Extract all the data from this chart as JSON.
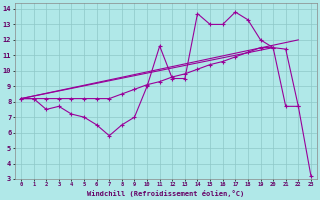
{
  "xlabel": "Windchill (Refroidissement éolien,°C)",
  "bg_color": "#b0e8e8",
  "grid_color": "#8ec8c8",
  "line_color": "#990099",
  "xlim": [
    -0.5,
    23.5
  ],
  "ylim": [
    3,
    14.4
  ],
  "xticks": [
    0,
    1,
    2,
    3,
    4,
    5,
    6,
    7,
    8,
    9,
    10,
    11,
    12,
    13,
    14,
    15,
    16,
    17,
    18,
    19,
    20,
    21,
    22,
    23
  ],
  "yticks": [
    3,
    4,
    5,
    6,
    7,
    8,
    9,
    10,
    11,
    12,
    13,
    14
  ],
  "line1_x": [
    0,
    1,
    2,
    3,
    4,
    5,
    6,
    7,
    8,
    9,
    10,
    11,
    12,
    13,
    14,
    15,
    16,
    17,
    18,
    19,
    20,
    21,
    22
  ],
  "line1_y": [
    8.2,
    8.2,
    7.5,
    7.7,
    7.2,
    7.0,
    6.5,
    5.8,
    6.5,
    7.0,
    9.0,
    11.6,
    9.5,
    9.5,
    13.7,
    13.0,
    13.0,
    13.8,
    13.3,
    12.0,
    11.5,
    7.7,
    7.7
  ],
  "line2_x": [
    0,
    1,
    2,
    3,
    4,
    5,
    6,
    7,
    8,
    9,
    10,
    11,
    12,
    13,
    14,
    15,
    16,
    17,
    18,
    19,
    20,
    21,
    22,
    23
  ],
  "line2_y": [
    8.2,
    8.2,
    8.2,
    8.2,
    8.2,
    8.2,
    8.2,
    8.2,
    8.5,
    8.8,
    9.1,
    9.3,
    9.6,
    9.8,
    10.1,
    10.4,
    10.6,
    10.9,
    11.2,
    11.5,
    11.5,
    11.4,
    7.7,
    3.2
  ],
  "line3_x": [
    0,
    22
  ],
  "line3_y": [
    8.2,
    12.0
  ],
  "line4_x": [
    0,
    20
  ],
  "line4_y": [
    8.2,
    11.5
  ]
}
